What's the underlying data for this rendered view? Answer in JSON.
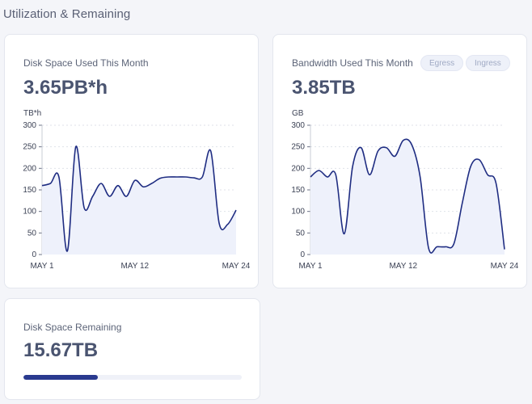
{
  "section_title": "Utilization & Remaining",
  "disk_used": {
    "label": "Disk Space Used This Month",
    "value": "3.65PB*h",
    "unit": "TB*h"
  },
  "bandwidth": {
    "label": "Bandwidth Used This Month",
    "value": "3.85TB",
    "unit": "GB",
    "pills": [
      "Egress",
      "Ingress"
    ]
  },
  "disk_remaining": {
    "label": "Disk Space Remaining",
    "value": "15.67TB",
    "progress_fraction": 0.34
  },
  "colors": {
    "line": "#1f2d82",
    "area": "#eef1fb",
    "grid": "#dfe2ea",
    "progress": "#2a3a8f"
  },
  "chart_data": [
    {
      "type": "area",
      "ylabel": "TB*h",
      "ylim": [
        0,
        300
      ],
      "yticks": [
        0,
        50,
        100,
        150,
        200,
        250,
        300
      ],
      "xlim": [
        1,
        24
      ],
      "xticks": [
        1,
        12,
        24
      ],
      "xtick_labels": [
        "MAY 1",
        "MAY 12",
        "MAY 24"
      ],
      "grid": true,
      "x": [
        1,
        2,
        3,
        4,
        5,
        6,
        7,
        8,
        9,
        10,
        11,
        12,
        13,
        14,
        15,
        16,
        17,
        18,
        19,
        20,
        21,
        22,
        23,
        24
      ],
      "values": [
        160,
        165,
        180,
        8,
        250,
        108,
        135,
        165,
        135,
        160,
        135,
        172,
        157,
        165,
        177,
        180,
        180,
        180,
        178,
        180,
        240,
        72,
        70,
        103
      ]
    },
    {
      "type": "area",
      "ylabel": "GB",
      "ylim": [
        0,
        300
      ],
      "yticks": [
        0,
        50,
        100,
        150,
        200,
        250,
        300
      ],
      "xlim": [
        1,
        24
      ],
      "xticks": [
        1,
        12,
        24
      ],
      "xtick_labels": [
        "MAY 1",
        "MAY 12",
        "MAY 24"
      ],
      "grid": true,
      "x": [
        1,
        2,
        3,
        4,
        5,
        6,
        7,
        8,
        9,
        10,
        11,
        12,
        13,
        14,
        15,
        16,
        17,
        18,
        19,
        20,
        21,
        22,
        23,
        24
      ],
      "values": [
        180,
        195,
        180,
        185,
        48,
        205,
        248,
        185,
        240,
        248,
        228,
        265,
        255,
        180,
        15,
        18,
        18,
        25,
        120,
        205,
        220,
        185,
        165,
        12
      ]
    }
  ]
}
